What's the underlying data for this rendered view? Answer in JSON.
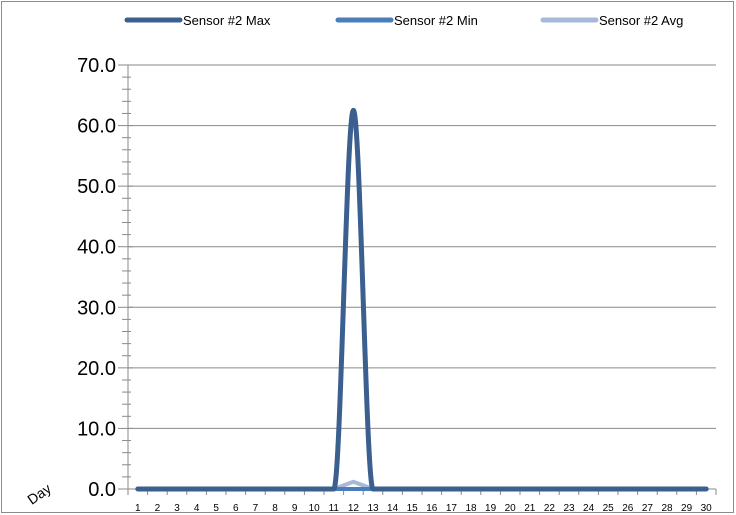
{
  "chart_data": {
    "type": "line",
    "xlabel": "Day",
    "ylabel": "",
    "ylim": [
      0,
      70
    ],
    "yticks": [
      "0.0",
      "10.0",
      "20.0",
      "30.0",
      "40.0",
      "50.0",
      "60.0",
      "70.0"
    ],
    "categories": [
      "1",
      "2",
      "3",
      "4",
      "5",
      "6",
      "7",
      "8",
      "9",
      "10",
      "11",
      "12",
      "13",
      "14",
      "15",
      "16",
      "17",
      "18",
      "19",
      "20",
      "21",
      "22",
      "23",
      "24",
      "25",
      "26",
      "27",
      "28",
      "29",
      "30"
    ],
    "grid": true,
    "legend": "top",
    "series": [
      {
        "name": "Sensor #2 Max",
        "color": "#3b5f8e",
        "values": [
          0,
          0,
          0,
          0,
          0,
          0,
          0,
          0,
          0,
          0,
          0,
          62.5,
          0,
          0,
          0,
          0,
          0,
          0,
          0,
          0,
          0,
          0,
          0,
          0,
          0,
          0,
          0,
          0,
          0,
          0
        ]
      },
      {
        "name": "Sensor #2 Min",
        "color": "#4a7ebb",
        "values": [
          0,
          0,
          0,
          0,
          0,
          0,
          0,
          0,
          0,
          0,
          0,
          0,
          0,
          0,
          0,
          0,
          0,
          0,
          0,
          0,
          0,
          0,
          0,
          0,
          0,
          0,
          0,
          0,
          0,
          0
        ]
      },
      {
        "name": "Sensor #2 Avg",
        "color": "#a7b9d9",
        "values": [
          0,
          0,
          0,
          0,
          0,
          0,
          0,
          0,
          0,
          0,
          0,
          1.2,
          0,
          0,
          0,
          0,
          0,
          0,
          0,
          0,
          0,
          0,
          0,
          0,
          0,
          0,
          0,
          0,
          0,
          0
        ]
      }
    ]
  }
}
